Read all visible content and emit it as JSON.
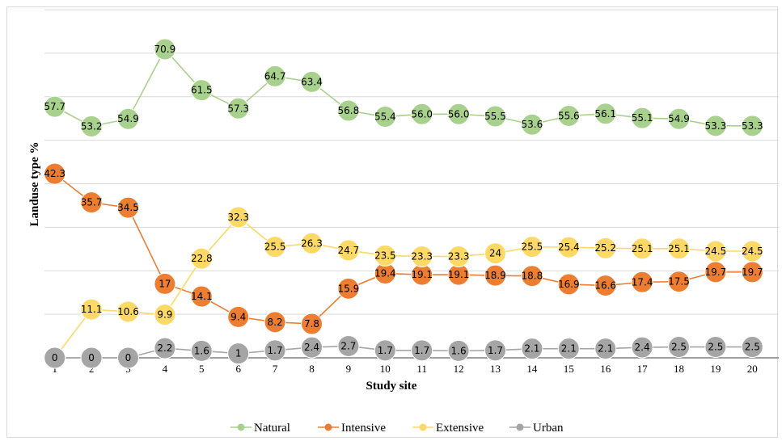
{
  "chart_data": {
    "type": "line",
    "xlabel": "Study site",
    "ylabel": "Landuse type %",
    "ylim": [
      0,
      80
    ],
    "grid": true,
    "legend_position": "bottom",
    "x": [
      "1",
      "2",
      "3",
      "4",
      "5",
      "6",
      "7",
      "8",
      "9",
      "10",
      "11",
      "12",
      "13",
      "14",
      "15",
      "16",
      "17",
      "18",
      "19",
      "20"
    ],
    "series": [
      {
        "name": "Natural",
        "color": "#a9d18e",
        "values": [
          57.7,
          53.2,
          54.9,
          70.9,
          61.5,
          57.3,
          64.7,
          63.4,
          56.8,
          55.4,
          56.0,
          56.0,
          55.5,
          53.6,
          55.6,
          56.1,
          55.1,
          54.9,
          53.3,
          53.3
        ],
        "labels": [
          "57.7",
          "53.2",
          "54.9",
          "70.9",
          "61.5",
          "57.3",
          "64.7",
          "63.4",
          "56.8",
          "55.4",
          "56.0",
          "56.0",
          "55.5",
          "53.6",
          "55.6",
          "56.1",
          "55.1",
          "54.9",
          "53.3",
          "53.3"
        ]
      },
      {
        "name": "Intensive",
        "color": "#ed7d31",
        "values": [
          42.3,
          35.7,
          34.5,
          17,
          14.1,
          9.4,
          8.2,
          7.8,
          15.9,
          19.4,
          19.1,
          19.1,
          18.9,
          18.8,
          16.9,
          16.6,
          17.4,
          17.5,
          19.7,
          19.7
        ],
        "labels": [
          "42.3",
          "35.7",
          "34.5",
          "17",
          "14.1",
          "9.4",
          "8.2",
          "7.8",
          "15.9",
          "19.4",
          "19.1",
          "19.1",
          "18.9",
          "18.8",
          "16.9",
          "16.6",
          "17.4",
          "17.5",
          "19.7",
          "19.7"
        ]
      },
      {
        "name": "Extensive",
        "color": "#ffd966",
        "values": [
          0,
          11.1,
          10.6,
          9.9,
          22.8,
          32.3,
          25.5,
          26.3,
          24.7,
          23.5,
          23.3,
          23.3,
          24,
          25.5,
          25.4,
          25.2,
          25.1,
          25.1,
          24.5,
          24.5
        ],
        "labels": [
          "0",
          "11.1",
          "10.6",
          "9.9",
          "22.8",
          "32.3",
          "25.5",
          "26.3",
          "24.7",
          "23.5",
          "23.3",
          "23.3",
          "24",
          "25.5",
          "25.4",
          "25.2",
          "25.1",
          "25.1",
          "24.5",
          "24.5"
        ]
      },
      {
        "name": "Urban",
        "color": "#a5a5a5",
        "values": [
          0,
          0,
          0,
          2.2,
          1.6,
          1,
          1.7,
          2.4,
          2.7,
          1.7,
          1.7,
          1.6,
          1.7,
          2.1,
          2.1,
          2.1,
          2.4,
          2.5,
          2.5,
          2.5
        ],
        "labels": [
          "0",
          "0",
          "0",
          "2.2",
          "1.6",
          "1",
          "1.7",
          "2.4",
          "2.7",
          "1.7",
          "1.7",
          "1.6",
          "1.7",
          "2.1",
          "2.1",
          "2.1",
          "2.4",
          "2.5",
          "2.5",
          "2.5"
        ]
      }
    ]
  }
}
